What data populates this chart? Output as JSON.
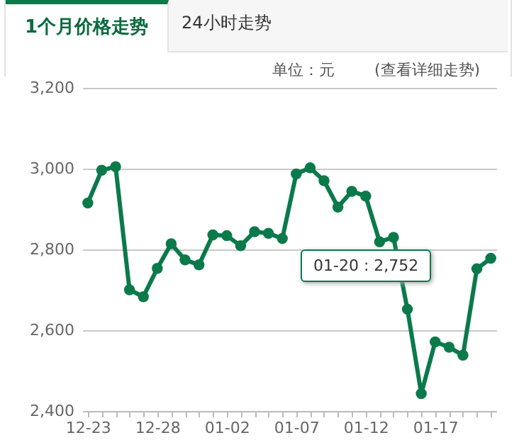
{
  "chart_data": {
    "type": "line",
    "title": "1个月价格走势",
    "annotations": [
      "24小时走势",
      "单位：元",
      "(查看详细走势)",
      "01-20 : 2,752"
    ],
    "categories": [
      "12-23",
      null,
      null,
      null,
      null,
      "12-28",
      null,
      null,
      null,
      null,
      "01-02",
      null,
      null,
      null,
      null,
      "01-07",
      null,
      null,
      null,
      null,
      "01-12",
      null,
      null,
      null,
      null,
      "01-17",
      null,
      null,
      null,
      null
    ],
    "series": [
      {
        "color": "#0b7a4a",
        "values": [
          2915,
          2996,
          3005,
          2700,
          2683,
          2753,
          2814,
          2774,
          2762,
          2836,
          2834,
          2809,
          2844,
          2840,
          2827,
          2987,
          3002,
          2970,
          2905,
          2944,
          2932,
          2819,
          2830,
          2652,
          2443,
          2571,
          2558,
          2538,
          2752,
          2778
        ]
      }
    ],
    "ylim": [
      2400,
      3200
    ],
    "yticks": [
      {
        "value": 2400,
        "label": "2,400"
      },
      {
        "value": 2600,
        "label": "2,600"
      },
      {
        "value": 2800,
        "label": "2,800"
      },
      {
        "value": 3000,
        "label": "3,000"
      },
      {
        "value": 3200,
        "label": "3,200"
      }
    ],
    "grid": "y",
    "marker": "circle",
    "line_style": "solid"
  }
}
